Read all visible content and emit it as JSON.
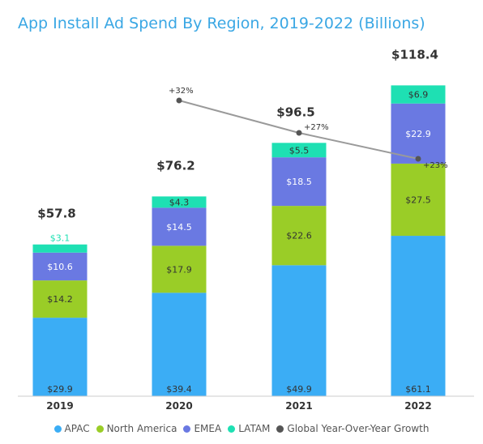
{
  "chart_data": {
    "type": "bar",
    "stacked": true,
    "title": "App Install Ad Spend By Region, 2019-2022 (Billions)",
    "categories": [
      "2019",
      "2020",
      "2021",
      "2022"
    ],
    "series": [
      {
        "name": "APAC",
        "color": "#3badf5",
        "values": [
          29.9,
          39.4,
          49.9,
          61.1
        ],
        "labels": [
          "$29.9",
          "$39.4",
          "$49.9",
          "$61.1"
        ],
        "label_color": "#333333"
      },
      {
        "name": "North America",
        "color": "#9acd27",
        "values": [
          14.2,
          17.9,
          22.6,
          27.5
        ],
        "labels": [
          "$14.2",
          "$17.9",
          "$22.6",
          "$27.5"
        ],
        "label_color": "#333333"
      },
      {
        "name": "EMEA",
        "color": "#6a79e2",
        "values": [
          10.6,
          14.5,
          18.5,
          22.9
        ],
        "labels": [
          "$10.6",
          "$14.5",
          "$18.5",
          "$22.9"
        ],
        "label_color": "#ffffff"
      },
      {
        "name": "LATAM",
        "color": "#1ee0b3",
        "values": [
          3.1,
          4.3,
          5.5,
          6.9
        ],
        "labels": [
          "$3.1",
          "$4.3",
          "$5.5",
          "$6.9"
        ],
        "label_color": "#333333"
      }
    ],
    "totals": [
      57.8,
      76.2,
      96.5,
      118.4
    ],
    "total_labels": [
      "$57.8",
      "$76.2",
      "$96.5",
      "$118.4"
    ],
    "growth": {
      "name": "Global Year-Over-Year Growth",
      "color": "#555555",
      "categories": [
        "2020",
        "2021",
        "2022"
      ],
      "values": [
        32,
        27,
        23
      ],
      "labels": [
        "+32%",
        "+27%",
        "+23%"
      ]
    },
    "ylim": [
      0,
      125
    ],
    "grid": false,
    "legend": "bottom"
  }
}
